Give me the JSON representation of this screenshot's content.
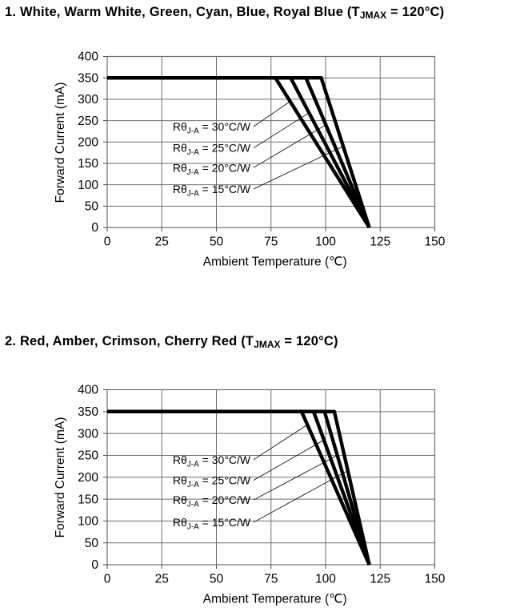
{
  "colors": {
    "background": "#ffffff",
    "curve": "#000000",
    "grid": "#6e6e6e",
    "text": "#000000"
  },
  "chart_data": [
    {
      "type": "line",
      "title": {
        "pre": "1. White, Warm White, Green, Cyan, Blue, Royal Blue (T",
        "sub": "JMAX",
        "post": " = 120°C)"
      },
      "xlabel": "Ambient Temperature (℃)",
      "ylabel": "Forward Current (mA)",
      "xlim": [
        0,
        150
      ],
      "ylim": [
        0,
        400
      ],
      "xticks": [
        0,
        25,
        50,
        75,
        100,
        125,
        150
      ],
      "yticks": [
        0,
        50,
        100,
        150,
        200,
        250,
        300,
        350,
        400
      ],
      "grid": true,
      "legend_position": "inside-left-with-leader-lines",
      "series": [
        {
          "key": "rtheta-30",
          "theta_c_per_w": 30,
          "label": {
            "pre": "Rθ",
            "sub": "J-A",
            "post": " = 30°C/W"
          },
          "points": [
            [
              0,
              350
            ],
            [
              77,
              350
            ],
            [
              120,
              0
            ]
          ],
          "label_at": [
            30,
            236
          ],
          "leader_start_x": 67,
          "leader_end": [
            83.8,
            295
          ]
        },
        {
          "key": "rtheta-25",
          "theta_c_per_w": 25,
          "label": {
            "pre": "Rθ",
            "sub": "J-A",
            "post": " = 25°C/W"
          },
          "points": [
            [
              0,
              350
            ],
            [
              84,
              350
            ],
            [
              120,
              0
            ]
          ],
          "label_at": [
            30,
            186
          ],
          "leader_start_x": 67,
          "leader_end": [
            92.4,
            268
          ]
        },
        {
          "key": "rtheta-20",
          "theta_c_per_w": 20,
          "label": {
            "pre": "Rθ",
            "sub": "J-A",
            "post": " = 20°C/W"
          },
          "points": [
            [
              0,
              350
            ],
            [
              91,
              350
            ],
            [
              120,
              0
            ]
          ],
          "label_at": [
            30,
            140
          ],
          "leader_start_x": 67,
          "leader_end": [
            100.1,
            240
          ]
        },
        {
          "key": "rtheta-15",
          "theta_c_per_w": 15,
          "label": {
            "pre": "Rθ",
            "sub": "J-A",
            "post": " = 15°C/W"
          },
          "points": [
            [
              0,
              350
            ],
            [
              98,
              350
            ],
            [
              120,
              0
            ]
          ],
          "label_at": [
            30,
            90
          ],
          "leader_start_x": 67,
          "leader_end": [
            108.1,
            190
          ]
        }
      ]
    },
    {
      "type": "line",
      "title": {
        "pre": "2. Red, Amber, Crimson, Cherry Red (T",
        "sub": "JMAX",
        "post": " = 120°C)"
      },
      "xlabel": "Ambient Temperature (℃)",
      "ylabel": "Forward Current (mA)",
      "xlim": [
        0,
        150
      ],
      "ylim": [
        0,
        400
      ],
      "xticks": [
        0,
        25,
        50,
        75,
        100,
        125,
        150
      ],
      "yticks": [
        0,
        50,
        100,
        150,
        200,
        250,
        300,
        350,
        400
      ],
      "grid": true,
      "legend_position": "inside-left-with-leader-lines",
      "series": [
        {
          "key": "rtheta-30",
          "theta_c_per_w": 30,
          "label": {
            "pre": "Rθ",
            "sub": "J-A",
            "post": " = 30°C/W"
          },
          "points": [
            [
              0,
              350
            ],
            [
              89,
              350
            ],
            [
              120,
              0
            ]
          ],
          "label_at": [
            30,
            240
          ],
          "leader_start_x": 67,
          "leader_end": [
            91.7,
            320
          ]
        },
        {
          "key": "rtheta-25",
          "theta_c_per_w": 25,
          "label": {
            "pre": "Rθ",
            "sub": "J-A",
            "post": " = 25°C/W"
          },
          "points": [
            [
              0,
              350
            ],
            [
              94.5,
              350
            ],
            [
              120,
              0
            ]
          ],
          "label_at": [
            30,
            193
          ],
          "leader_start_x": 67,
          "leader_end": [
            99.2,
            285
          ]
        },
        {
          "key": "rtheta-20",
          "theta_c_per_w": 20,
          "label": {
            "pre": "Rθ",
            "sub": "J-A",
            "post": " = 20°C/W"
          },
          "points": [
            [
              0,
              350
            ],
            [
              99.5,
              350
            ],
            [
              120,
              0
            ]
          ],
          "label_at": [
            30,
            148
          ],
          "leader_start_x": 67,
          "leader_end": [
            105.4,
            250
          ]
        },
        {
          "key": "rtheta-15",
          "theta_c_per_w": 15,
          "label": {
            "pre": "Rθ",
            "sub": "J-A",
            "post": " = 15°C/W"
          },
          "points": [
            [
              0,
              350
            ],
            [
              104,
              350
            ],
            [
              120,
              0
            ]
          ],
          "label_at": [
            30,
            97
          ],
          "leader_start_x": 67,
          "leader_end": [
            110.2,
            215
          ]
        }
      ]
    }
  ]
}
